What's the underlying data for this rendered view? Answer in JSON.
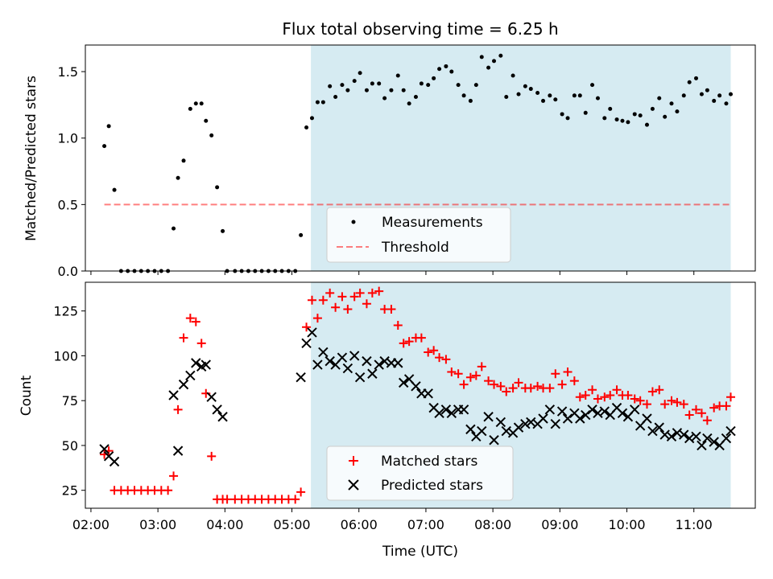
{
  "title": "Flux total observing time = 6.25 h",
  "colors": {
    "highlight": "#add8e6",
    "matched": "#ff0000",
    "predicted": "#000000",
    "threshold": "#ff0000",
    "measurements": "#000000"
  },
  "chart_data": [
    {
      "type": "scatter",
      "title": "Flux total observing time = 6.25 h",
      "xlabel": "",
      "ylabel": "Matched/Predicted stars",
      "ylim": [
        0,
        1.7
      ],
      "yticks": [
        "0.0",
        "0.5",
        "1.0",
        "1.5"
      ],
      "xlim": [
        "01:55",
        "11:55"
      ],
      "legend_position": "lower center",
      "highlight_span": [
        "05:17",
        "11:33"
      ],
      "threshold": {
        "name": "Threshold",
        "value": 0.5,
        "x_range": [
          "02:12",
          "11:33"
        ],
        "style": "dashed"
      },
      "series": [
        {
          "name": "Measurements",
          "x": [
            "02:12",
            "02:16",
            "02:21",
            "02:27",
            "02:33",
            "02:39",
            "02:45",
            "02:51",
            "02:57",
            "03:03",
            "03:09",
            "03:14",
            "03:18",
            "03:23",
            "03:29",
            "03:34",
            "03:39",
            "03:43",
            "03:48",
            "03:53",
            "03:58",
            "04:02",
            "04:09",
            "04:15",
            "04:21",
            "04:27",
            "04:33",
            "04:39",
            "04:45",
            "04:51",
            "04:57",
            "05:03",
            "05:08",
            "05:13",
            "05:18",
            "05:23",
            "05:28",
            "05:34",
            "05:39",
            "05:45",
            "05:50",
            "05:56",
            "06:01",
            "06:07",
            "06:12",
            "06:18",
            "06:23",
            "06:29",
            "06:35",
            "06:40",
            "06:45",
            "06:51",
            "06:56",
            "07:02",
            "07:07",
            "07:12",
            "07:18",
            "07:23",
            "07:29",
            "07:34",
            "07:40",
            "07:45",
            "07:50",
            "07:56",
            "08:01",
            "08:07",
            "08:12",
            "08:18",
            "08:23",
            "08:29",
            "08:34",
            "08:40",
            "08:45",
            "08:51",
            "08:56",
            "09:02",
            "09:07",
            "09:13",
            "09:18",
            "09:23",
            "09:29",
            "09:34",
            "09:40",
            "09:45",
            "09:51",
            "09:56",
            "10:01",
            "10:07",
            "10:12",
            "10:18",
            "10:23",
            "10:29",
            "10:34",
            "10:40",
            "10:45",
            "10:51",
            "10:56",
            "11:02",
            "11:07",
            "11:12",
            "11:18",
            "11:23",
            "11:29",
            "11:33"
          ],
          "y": [
            0.94,
            1.09,
            0.61,
            0,
            0,
            0,
            0,
            0,
            0,
            0,
            0,
            0.32,
            0.7,
            0.83,
            1.22,
            1.26,
            1.26,
            1.13,
            1.02,
            0.63,
            0.3,
            0,
            0,
            0,
            0,
            0,
            0,
            0,
            0,
            0,
            0,
            0,
            0.27,
            1.08,
            1.15,
            1.27,
            1.27,
            1.39,
            1.31,
            1.4,
            1.36,
            1.43,
            1.49,
            1.36,
            1.41,
            1.41,
            1.3,
            1.36,
            1.47,
            1.36,
            1.26,
            1.31,
            1.41,
            1.4,
            1.45,
            1.52,
            1.54,
            1.5,
            1.4,
            1.32,
            1.28,
            1.4,
            1.61,
            1.53,
            1.58,
            1.62,
            1.31,
            1.47,
            1.33,
            1.39,
            1.37,
            1.34,
            1.28,
            1.32,
            1.29,
            1.18,
            1.15,
            1.32,
            1.32,
            1.19,
            1.4,
            1.3,
            1.15,
            1.22,
            1.14,
            1.13,
            1.12,
            1.18,
            1.17,
            1.1,
            1.22,
            1.3,
            1.16,
            1.26,
            1.2,
            1.32,
            1.42,
            1.45,
            1.33,
            1.36,
            1.28,
            1.32,
            1.26,
            1.33
          ]
        }
      ]
    },
    {
      "type": "scatter",
      "xlabel": "Time (UTC)",
      "ylabel": "Count",
      "ylim": [
        15,
        141
      ],
      "yticks": [
        "25",
        "50",
        "75",
        "100",
        "125"
      ],
      "xlim": [
        "01:55",
        "11:55"
      ],
      "xticks": [
        "02:00",
        "03:00",
        "04:00",
        "05:00",
        "06:00",
        "07:00",
        "08:00",
        "09:00",
        "10:00",
        "11:00"
      ],
      "legend_position": "lower center",
      "highlight_span": [
        "05:17",
        "11:33"
      ],
      "series": [
        {
          "name": "Matched stars",
          "marker": "plus",
          "x": [
            "02:12",
            "02:16",
            "02:21",
            "02:27",
            "02:33",
            "02:39",
            "02:45",
            "02:51",
            "02:57",
            "03:03",
            "03:09",
            "03:14",
            "03:18",
            "03:23",
            "03:29",
            "03:34",
            "03:39",
            "03:43",
            "03:48",
            "03:53",
            "03:58",
            "04:02",
            "04:09",
            "04:15",
            "04:21",
            "04:27",
            "04:33",
            "04:39",
            "04:45",
            "04:51",
            "04:57",
            "05:03",
            "05:08",
            "05:13",
            "05:18",
            "05:23",
            "05:28",
            "05:34",
            "05:39",
            "05:45",
            "05:50",
            "05:56",
            "06:01",
            "06:07",
            "06:12",
            "06:18",
            "06:23",
            "06:29",
            "06:35",
            "06:40",
            "06:45",
            "06:51",
            "06:56",
            "07:02",
            "07:07",
            "07:12",
            "07:18",
            "07:23",
            "07:29",
            "07:34",
            "07:40",
            "07:45",
            "07:50",
            "07:56",
            "08:01",
            "08:07",
            "08:12",
            "08:18",
            "08:23",
            "08:29",
            "08:34",
            "08:40",
            "08:45",
            "08:51",
            "08:56",
            "09:02",
            "09:07",
            "09:13",
            "09:18",
            "09:23",
            "09:29",
            "09:34",
            "09:40",
            "09:45",
            "09:51",
            "09:56",
            "10:01",
            "10:07",
            "10:12",
            "10:18",
            "10:23",
            "10:29",
            "10:34",
            "10:40",
            "10:45",
            "10:51",
            "10:56",
            "11:02",
            "11:07",
            "11:12",
            "11:18",
            "11:23",
            "11:29",
            "11:33"
          ],
          "y": [
            45,
            47,
            25,
            25,
            25,
            25,
            25,
            25,
            25,
            25,
            25,
            33,
            70,
            110,
            121,
            119,
            107,
            79,
            44,
            20,
            20,
            20,
            20,
            20,
            20,
            20,
            20,
            20,
            20,
            20,
            20,
            20,
            24,
            116,
            131,
            121,
            131,
            135,
            127,
            133,
            126,
            133,
            135,
            129,
            135,
            136,
            126,
            126,
            117,
            107,
            108,
            110,
            110,
            102,
            103,
            99,
            98,
            91,
            90,
            84,
            88,
            89,
            94,
            86,
            84,
            83,
            80,
            82,
            85,
            82,
            82,
            83,
            82,
            82,
            90,
            84,
            91,
            86,
            77,
            78,
            81,
            76,
            77,
            78,
            81,
            78,
            78,
            76,
            75,
            73,
            80,
            81,
            73,
            75,
            74,
            73,
            67,
            70,
            68,
            64,
            71,
            72,
            72,
            77
          ]
        },
        {
          "name": "Predicted stars",
          "marker": "x",
          "x": [
            "02:12",
            "02:16",
            "02:21",
            "03:14",
            "03:18",
            "03:23",
            "03:29",
            "03:34",
            "03:39",
            "03:43",
            "03:48",
            "03:53",
            "03:58",
            "05:08",
            "05:13",
            "05:18",
            "05:23",
            "05:28",
            "05:34",
            "05:39",
            "05:45",
            "05:50",
            "05:56",
            "06:01",
            "06:07",
            "06:12",
            "06:18",
            "06:23",
            "06:29",
            "06:35",
            "06:40",
            "06:45",
            "06:51",
            "06:56",
            "07:02",
            "07:07",
            "07:12",
            "07:18",
            "07:23",
            "07:29",
            "07:34",
            "07:40",
            "07:45",
            "07:50",
            "07:56",
            "08:01",
            "08:07",
            "08:12",
            "08:18",
            "08:23",
            "08:29",
            "08:34",
            "08:40",
            "08:45",
            "08:51",
            "08:56",
            "09:02",
            "09:07",
            "09:13",
            "09:18",
            "09:23",
            "09:29",
            "09:34",
            "09:40",
            "09:45",
            "09:51",
            "09:56",
            "10:01",
            "10:07",
            "10:12",
            "10:18",
            "10:23",
            "10:29",
            "10:34",
            "10:40",
            "10:45",
            "10:51",
            "10:56",
            "11:02",
            "11:07",
            "11:12",
            "11:18",
            "11:23",
            "11:29",
            "11:33"
          ],
          "y": [
            48,
            44,
            41,
            78,
            47,
            84,
            89,
            96,
            94,
            95,
            77,
            70,
            66,
            88,
            107,
            113,
            95,
            102,
            97,
            95,
            99,
            93,
            100,
            88,
            97,
            90,
            95,
            97,
            96,
            96,
            85,
            87,
            83,
            79,
            79,
            71,
            68,
            70,
            68,
            70,
            70,
            59,
            55,
            58,
            66,
            53,
            63,
            58,
            57,
            60,
            62,
            63,
            62,
            65,
            70,
            62,
            69,
            65,
            68,
            65,
            67,
            70,
            68,
            69,
            67,
            71,
            68,
            66,
            70,
            61,
            65,
            58,
            60,
            56,
            55,
            57,
            56,
            54,
            55,
            50,
            54,
            52,
            50,
            54,
            58
          ]
        }
      ]
    }
  ]
}
